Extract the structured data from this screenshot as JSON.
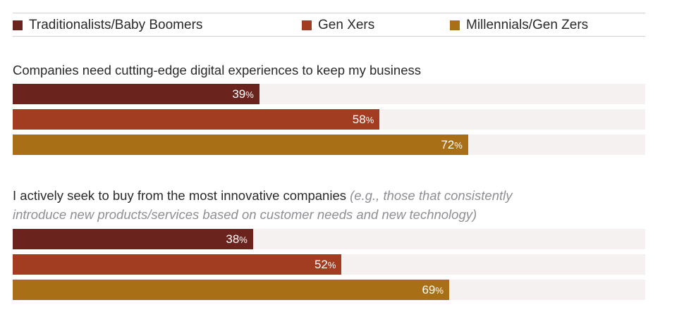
{
  "chart_data": {
    "type": "bar",
    "orientation": "horizontal",
    "xlim": [
      0,
      100
    ],
    "legend_position": "top",
    "series": [
      {
        "name": "Traditionalists/Baby Boomers",
        "color": "#6b231d"
      },
      {
        "name": "Gen Xers",
        "color": "#a33d22"
      },
      {
        "name": "Millennials/Gen Zers",
        "color": "#a86f17"
      }
    ],
    "groups": [
      {
        "question": "Companies need cutting-edge digital experiences to keep my business",
        "note_line1": "",
        "note_line2": "",
        "values": [
          39,
          58,
          72
        ]
      },
      {
        "question": "I actively seek to buy from the most innovative companies ",
        "note_line1": "(e.g., those that consistently",
        "note_line2": "introduce new products/services based on customer needs and new technology)",
        "values": [
          38,
          52,
          69
        ]
      }
    ],
    "unit": "%"
  }
}
